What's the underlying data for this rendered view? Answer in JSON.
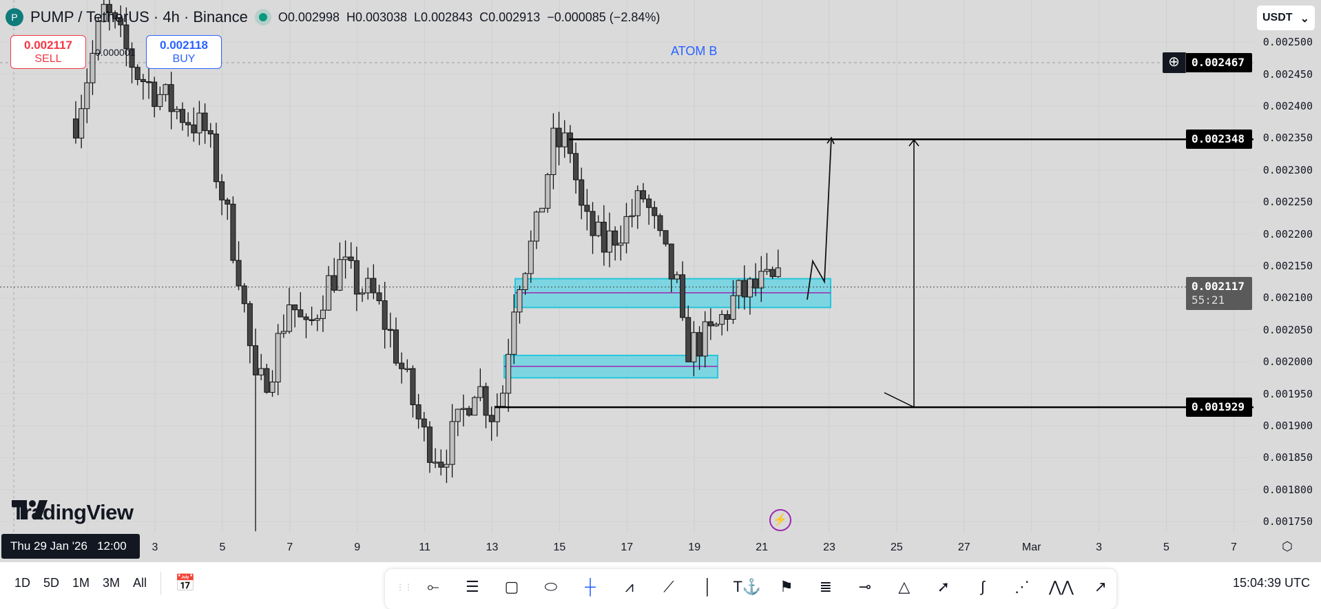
{
  "header": {
    "symbol": "PUMP / TetherUS · 4h · Binance",
    "open": "O0.002998",
    "high": "H0.003038",
    "low": "L0.002843",
    "close": "C0.002913",
    "change": "−0.000085 (−2.84%)",
    "market_status_color": "#089981"
  },
  "trade": {
    "sell_price": "0.002117",
    "sell_label": "SELL",
    "buy_price": "0.002118",
    "buy_label": "BUY",
    "spread": "0.000001"
  },
  "annotation": "ATOM B",
  "watermark": "TradingView",
  "price_axis": {
    "currency": "USDT",
    "labels": [
      "0.002500",
      "0.002450",
      "0.002400",
      "0.002350",
      "0.002300",
      "0.002250",
      "0.002200",
      "0.002150",
      "0.002100",
      "0.002050",
      "0.002000",
      "0.001950",
      "0.001900",
      "0.001850",
      "0.001800",
      "0.001750"
    ],
    "crosshair_price": "0.002467",
    "resistance": "0.002348",
    "support": "0.001929",
    "current_price": "0.002117",
    "countdown": "55:21"
  },
  "zones": [
    {
      "from": 0.002085,
      "to": 0.00213,
      "mid": 0.002108
    },
    {
      "from": 0.001975,
      "to": 0.00201,
      "mid": 0.001993
    }
  ],
  "time_axis": {
    "crosshair": "Thu 29 Jan '26   12:00",
    "labels": [
      "3",
      "5",
      "7",
      "9",
      "11",
      "13",
      "15",
      "17",
      "19",
      "21",
      "23",
      "25",
      "27",
      "Mar",
      "3",
      "5",
      "7"
    ]
  },
  "bottom": {
    "ranges": [
      "1D",
      "5D",
      "1M",
      "3M",
      "All"
    ],
    "clock": "15:04:39 UTC"
  },
  "toolbar": [
    "grip-icon",
    "ray-icon",
    "parallel-channel-icon",
    "rectangle-icon",
    "ellipse-icon",
    "crosshair-icon",
    "path-icon",
    "trend-line-icon",
    "vertical-line-icon",
    "text-anchor-icon",
    "flag-icon",
    "fib-icon",
    "horizontal-ray-icon",
    "triangle-icon",
    "arrow-line-icon",
    "curve-icon",
    "fib-extension-icon",
    "pattern-icon",
    "arrow-icon"
  ],
  "colors": {
    "zone": "#5fd3e4",
    "zone_mid": "#9c27b0",
    "up_candle": "#c0c0c0",
    "down_candle": "#454545",
    "sell": "#f23645",
    "buy": "#2962ff"
  }
}
